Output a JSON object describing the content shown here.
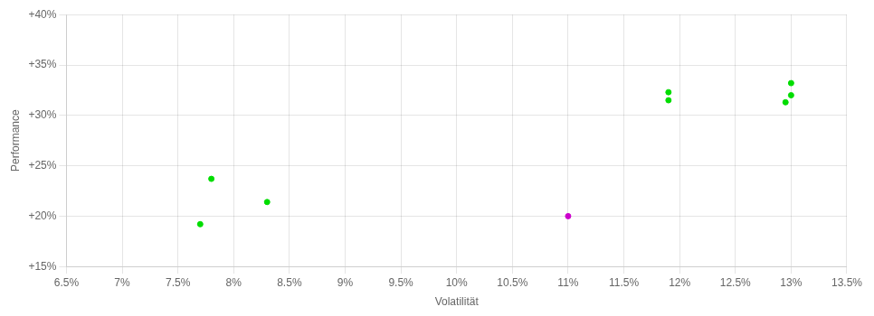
{
  "chart_data": {
    "type": "scatter",
    "xlabel": "Volatilität",
    "ylabel": "Performance",
    "series": [
      {
        "color": "#00dd00",
        "marker": "circle",
        "x": [
          0.078,
          0.077,
          0.083,
          0.119,
          0.119,
          0.13,
          0.13,
          0.1295
        ],
        "values": [
          0.237,
          0.192,
          0.214,
          0.323,
          0.315,
          0.332,
          0.32,
          0.313
        ]
      },
      {
        "color": "#cc00cc",
        "marker": "circle",
        "x": [
          0.11
        ],
        "values": [
          0.2
        ]
      }
    ],
    "xlim": [
      0.065,
      0.135
    ],
    "ylim": [
      0.15,
      0.4
    ],
    "xticks": [
      {
        "value": 0.065,
        "label": "6.5%"
      },
      {
        "value": 0.07,
        "label": "7%"
      },
      {
        "value": 0.075,
        "label": "7.5%"
      },
      {
        "value": 0.08,
        "label": "8%"
      },
      {
        "value": 0.085,
        "label": "8.5%"
      },
      {
        "value": 0.09,
        "label": "9%"
      },
      {
        "value": 0.095,
        "label": "9.5%"
      },
      {
        "value": 0.1,
        "label": "10%"
      },
      {
        "value": 0.105,
        "label": "10.5%"
      },
      {
        "value": 0.11,
        "label": "11%"
      },
      {
        "value": 0.115,
        "label": "11.5%"
      },
      {
        "value": 0.12,
        "label": "12%"
      },
      {
        "value": 0.125,
        "label": "12.5%"
      },
      {
        "value": 0.13,
        "label": "13%"
      },
      {
        "value": 0.135,
        "label": "13.5%"
      }
    ],
    "yticks": [
      {
        "value": 0.15,
        "label": "+15%"
      },
      {
        "value": 0.2,
        "label": "+20%"
      },
      {
        "value": 0.25,
        "label": "+25%"
      },
      {
        "value": 0.3,
        "label": "+30%"
      },
      {
        "value": 0.35,
        "label": "+35%"
      },
      {
        "value": 0.4,
        "label": "+40%"
      }
    ],
    "grid": true
  }
}
